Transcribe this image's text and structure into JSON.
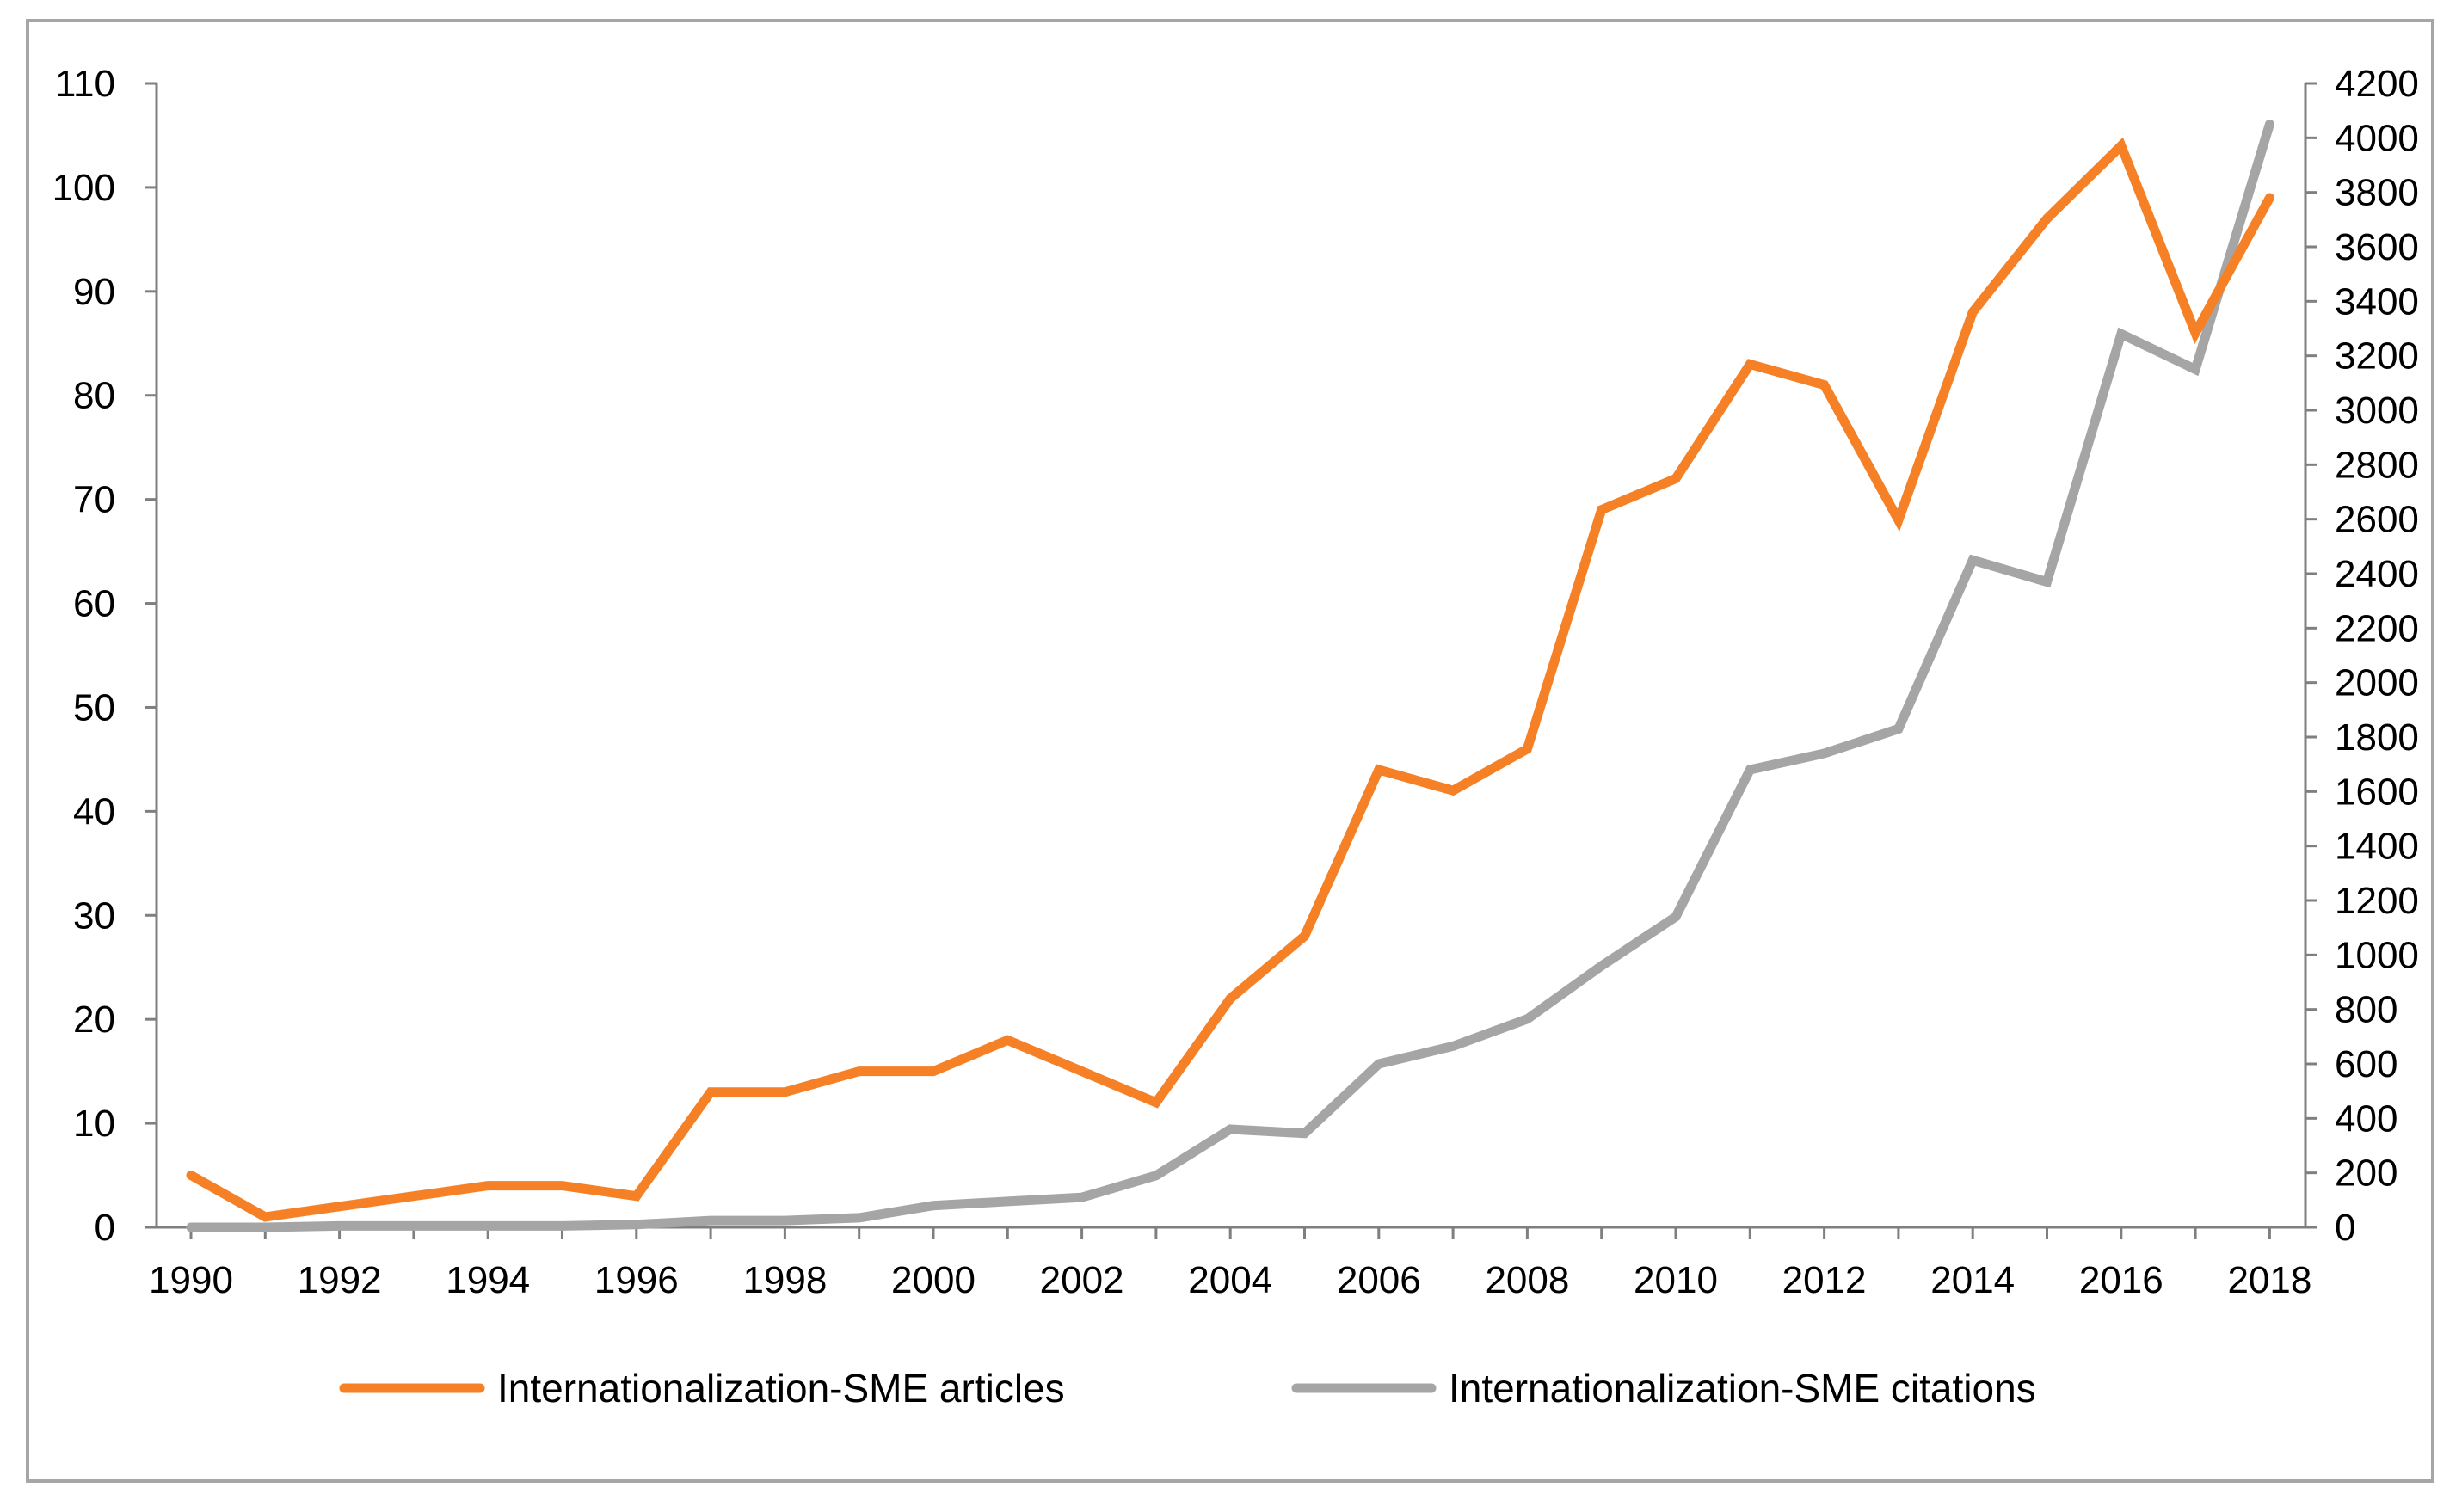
{
  "chart_data": {
    "type": "line",
    "title": "",
    "xlabel": "",
    "ylabel": "",
    "y2label": "",
    "grid": false,
    "legend_position": "bottom",
    "x": [
      1990,
      1991,
      1992,
      1993,
      1994,
      1995,
      1996,
      1997,
      1998,
      1999,
      2000,
      2001,
      2002,
      2003,
      2004,
      2005,
      2006,
      2007,
      2008,
      2009,
      2010,
      2011,
      2012,
      2013,
      2014,
      2015,
      2016,
      2017,
      2018
    ],
    "x_tick_labels": [
      "1990",
      "1992",
      "1994",
      "1996",
      "1998",
      "2000",
      "2002",
      "2004",
      "2006",
      "2008",
      "2010",
      "2012",
      "2014",
      "2016",
      "2018"
    ],
    "ylim": [
      0,
      110
    ],
    "y_ticks": [
      "0",
      "10",
      "20",
      "30",
      "40",
      "50",
      "60",
      "70",
      "80",
      "90",
      "100",
      "110"
    ],
    "y2lim": [
      0,
      4200
    ],
    "y2_ticks": [
      "0",
      "200",
      "400",
      "600",
      "800",
      "1000",
      "1200",
      "1400",
      "1600",
      "1800",
      "2000",
      "2200",
      "2400",
      "2600",
      "2800",
      "3000",
      "3200",
      "3400",
      "3600",
      "3800",
      "4000",
      "4200"
    ],
    "series": [
      {
        "name": "Internationalization-SME articles",
        "axis": "left",
        "color": "#f58025",
        "values": [
          5,
          1,
          2,
          3,
          4,
          4,
          3,
          13,
          13,
          15,
          15,
          18,
          15,
          12,
          22,
          28,
          44,
          42,
          46,
          69,
          72,
          83,
          81,
          68,
          88,
          97,
          104,
          86,
          99
        ]
      },
      {
        "name": "Internationalization-SME citations",
        "axis": "right",
        "color": "#a5a5a5",
        "values": [
          0,
          0,
          5,
          5,
          5,
          5,
          10,
          25,
          25,
          35,
          80,
          95,
          110,
          190,
          360,
          345,
          600,
          665,
          765,
          960,
          1140,
          1680,
          1740,
          1830,
          2450,
          2370,
          3280,
          3150,
          4050
        ]
      }
    ]
  }
}
